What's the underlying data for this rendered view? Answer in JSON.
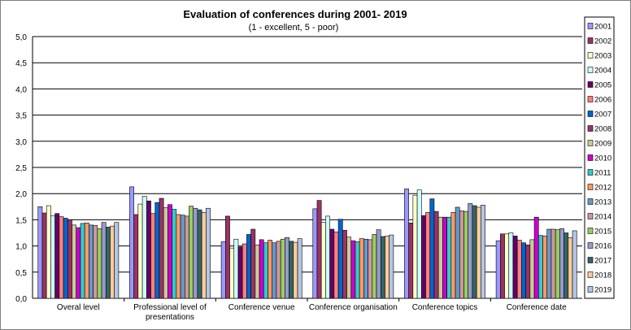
{
  "chart_data": {
    "type": "bar",
    "title": "Evaluation of conferences during 2001- 2019",
    "subtitle": "(1 - excellent,  5 - poor)",
    "xlabel": "",
    "ylabel": "",
    "ylim": [
      0,
      5
    ],
    "yticks": [
      "0,0",
      "0,5",
      "1,0",
      "1,5",
      "2,0",
      "2,5",
      "3,0",
      "3,5",
      "4,0",
      "4,5",
      "5,0"
    ],
    "grid": true,
    "legend_position": "right",
    "categories": [
      "Overal level",
      "Professional level of presentations",
      "Conference venue",
      "Conference organisation",
      "Conference topics",
      "Conference date"
    ],
    "series": [
      {
        "name": "2001",
        "color": "#9999ff",
        "values": [
          1.75,
          2.13,
          1.08,
          1.71,
          2.09,
          1.1
        ]
      },
      {
        "name": "2002",
        "color": "#993366",
        "values": [
          1.63,
          1.6,
          1.57,
          1.87,
          1.44,
          1.23
        ]
      },
      {
        "name": "2003",
        "color": "#ffffcc",
        "values": [
          1.77,
          1.8,
          0.96,
          1.45,
          1.97,
          1.23
        ]
      },
      {
        "name": "2004",
        "color": "#ccffff",
        "values": [
          1.58,
          1.95,
          1.13,
          1.57,
          2.07,
          1.25
        ]
      },
      {
        "name": "2005",
        "color": "#660066",
        "values": [
          1.62,
          1.86,
          0.98,
          1.32,
          1.58,
          1.19
        ]
      },
      {
        "name": "2006",
        "color": "#ff8080",
        "values": [
          1.56,
          1.62,
          1.04,
          1.27,
          1.64,
          1.11
        ]
      },
      {
        "name": "2007",
        "color": "#0066cc",
        "values": [
          1.53,
          1.83,
          1.22,
          1.51,
          1.9,
          1.06
        ]
      },
      {
        "name": "2008",
        "color": "#993366",
        "values": [
          1.5,
          1.91,
          1.32,
          1.3,
          1.66,
          1.02
        ]
      },
      {
        "name": "2009",
        "color": "#cccc99",
        "values": [
          1.4,
          1.73,
          1.02,
          1.17,
          1.55,
          1.12
        ]
      },
      {
        "name": "2010",
        "color": "#cc00cc",
        "values": [
          1.35,
          1.79,
          1.12,
          1.1,
          1.55,
          1.55
        ]
      },
      {
        "name": "2011",
        "color": "#33cccc",
        "values": [
          1.43,
          1.7,
          1.06,
          1.08,
          1.55,
          1.2
        ]
      },
      {
        "name": "2012",
        "color": "#ff9966",
        "values": [
          1.44,
          1.6,
          1.11,
          1.14,
          1.64,
          1.19
        ]
      },
      {
        "name": "2013",
        "color": "#6699cc",
        "values": [
          1.4,
          1.59,
          1.06,
          1.13,
          1.74,
          1.32
        ]
      },
      {
        "name": "2014",
        "color": "#cc9999",
        "values": [
          1.39,
          1.57,
          1.09,
          1.12,
          1.67,
          1.32
        ]
      },
      {
        "name": "2015",
        "color": "#99cc66",
        "values": [
          1.33,
          1.76,
          1.13,
          1.22,
          1.66,
          1.31
        ]
      },
      {
        "name": "2016",
        "color": "#9999cc",
        "values": [
          1.45,
          1.72,
          1.16,
          1.31,
          1.81,
          1.33
        ]
      },
      {
        "name": "2017",
        "color": "#336666",
        "values": [
          1.36,
          1.69,
          1.09,
          1.18,
          1.77,
          1.25
        ]
      },
      {
        "name": "2018",
        "color": "#ffcc99",
        "values": [
          1.38,
          1.64,
          1.07,
          1.19,
          1.74,
          1.16
        ]
      },
      {
        "name": "2019",
        "color": "#b3c6e6",
        "values": [
          1.45,
          1.72,
          1.14,
          1.21,
          1.78,
          1.29
        ]
      }
    ]
  }
}
